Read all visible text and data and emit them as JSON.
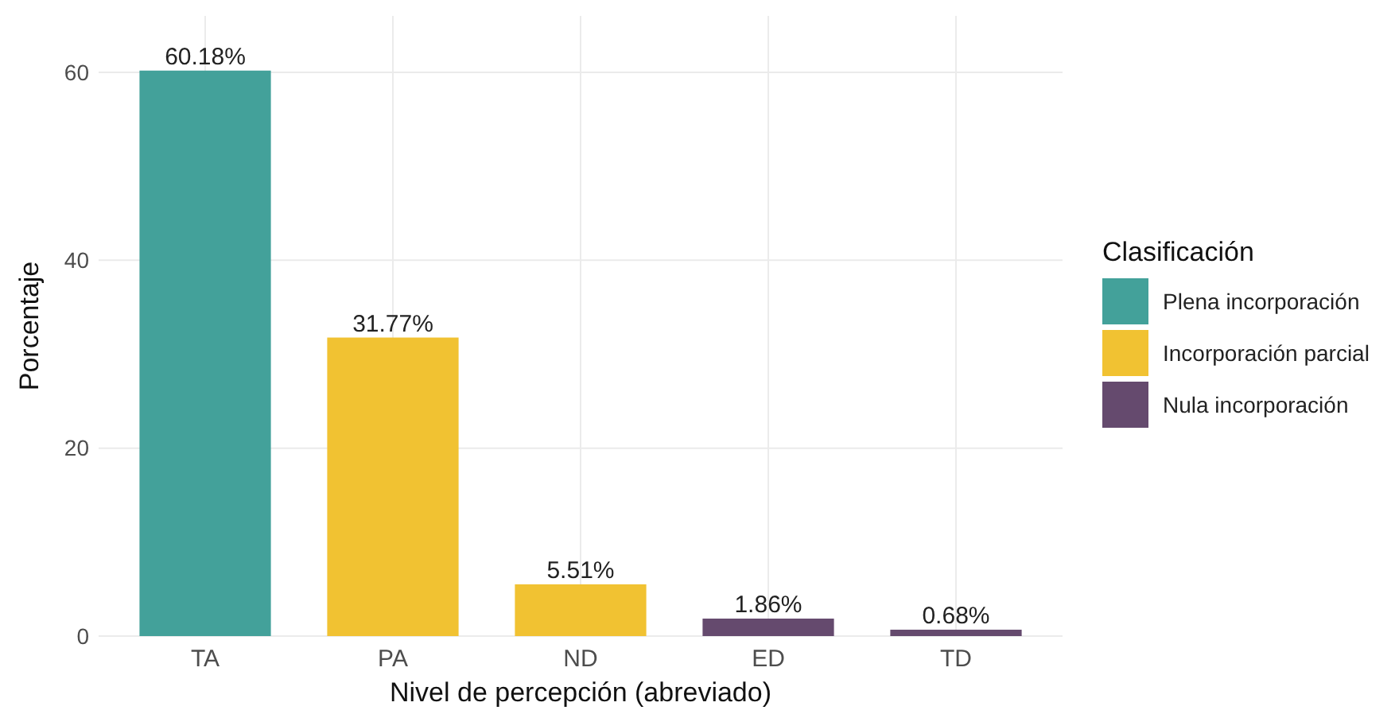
{
  "chart_data": {
    "type": "bar",
    "categories": [
      "TA",
      "PA",
      "ND",
      "ED",
      "TD"
    ],
    "series": [
      {
        "name": "Plena incorporación",
        "color": "#43a19a",
        "values": [
          60.18,
          null,
          null,
          null,
          null
        ],
        "value_labels": [
          "60.18%",
          null,
          null,
          null,
          null
        ]
      },
      {
        "name": "Incorporación parcial",
        "color": "#f1c232",
        "values": [
          null,
          31.77,
          5.51,
          null,
          null
        ],
        "value_labels": [
          null,
          "31.77%",
          "5.51%",
          null,
          null
        ]
      },
      {
        "name": "Nula incorporación",
        "color": "#654a6e",
        "values": [
          null,
          null,
          null,
          1.86,
          0.68
        ],
        "value_labels": [
          null,
          null,
          null,
          "1.86%",
          "0.68%"
        ]
      }
    ],
    "xlabel": "Nivel de percepción (abreviado)",
    "ylabel": "Porcentaje",
    "legend_title": "Clasificación",
    "ylim": [
      0,
      66
    ],
    "yticks": [
      0,
      20,
      40,
      60
    ],
    "grid": true,
    "legend": "right"
  }
}
